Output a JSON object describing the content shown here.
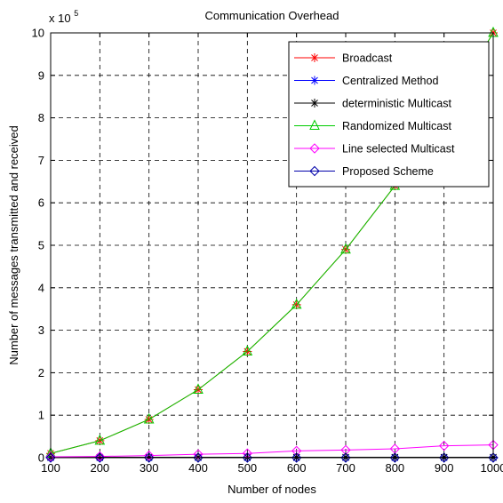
{
  "chart_data": {
    "type": "line",
    "title": "Communication Overhead",
    "xlabel": "Number of nodes",
    "ylabel": "Number of messages transmitted and received",
    "y_multiplier_label": "x 10",
    "y_multiplier_exponent": "5",
    "x": [
      100,
      200,
      300,
      400,
      500,
      600,
      700,
      800,
      900,
      1000
    ],
    "xlim": [
      100,
      1000
    ],
    "ylim": [
      0,
      10
    ],
    "x_ticks": [
      "100",
      "200",
      "300",
      "400",
      "500",
      "600",
      "700",
      "800",
      "900",
      "1000"
    ],
    "y_ticks": [
      "0",
      "1",
      "2",
      "3",
      "4",
      "5",
      "6",
      "7",
      "8",
      "9",
      "10"
    ],
    "grid": true,
    "legend_position": "top-right",
    "series": [
      {
        "name": "Broadcast",
        "color": "#ff0000",
        "marker": "star",
        "values": [
          0.1,
          0.4,
          0.9,
          1.6,
          2.5,
          3.6,
          4.9,
          6.4,
          8.1,
          10.0
        ]
      },
      {
        "name": "Centralized Method",
        "color": "#0000ff",
        "marker": "star",
        "values": [
          0.0,
          0.0,
          0.0,
          0.0,
          0.0,
          0.0,
          0.0,
          0.0,
          0.0,
          0.0
        ]
      },
      {
        "name": "deterministic Multicast",
        "color": "#000000",
        "marker": "star",
        "values": [
          0.01,
          0.01,
          0.01,
          0.01,
          0.01,
          0.01,
          0.01,
          0.01,
          0.01,
          0.01
        ]
      },
      {
        "name": "Randomized Multicast",
        "color": "#00cc00",
        "marker": "triangle",
        "values": [
          0.1,
          0.4,
          0.9,
          1.6,
          2.5,
          3.6,
          4.9,
          6.4,
          8.1,
          10.0
        ]
      },
      {
        "name": "Line selected Multicast",
        "color": "#ff00ff",
        "marker": "diamond",
        "values": [
          0.02,
          0.03,
          0.05,
          0.08,
          0.1,
          0.16,
          0.18,
          0.21,
          0.28,
          0.3
        ]
      },
      {
        "name": "Proposed Scheme",
        "color": "#0000aa",
        "marker": "diamond",
        "values": [
          0.0,
          0.0,
          0.0,
          0.0,
          0.0,
          0.0,
          0.0,
          0.0,
          0.0,
          0.0
        ]
      }
    ]
  }
}
